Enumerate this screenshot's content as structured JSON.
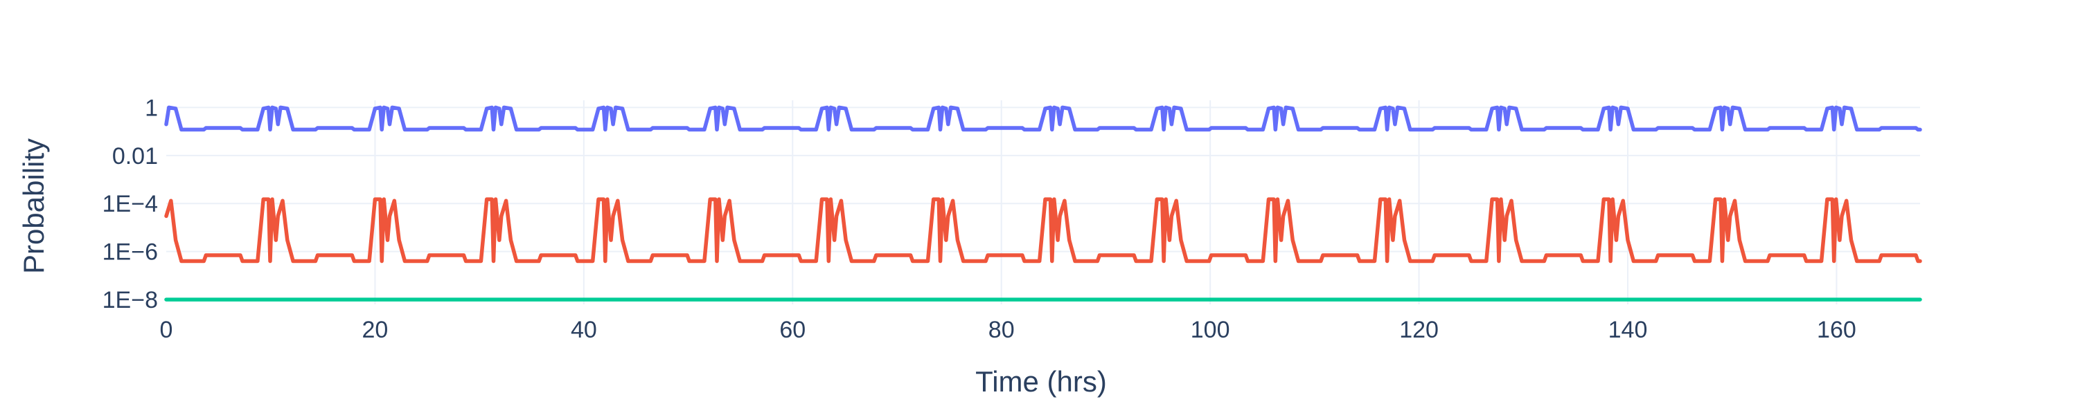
{
  "chart_data": {
    "type": "line",
    "xlabel": "Time (hrs)",
    "ylabel": "Probability",
    "xlim": [
      0,
      168
    ],
    "ylim_log10": [
      -8.2,
      0.3
    ],
    "y_scale": "log",
    "x_ticks": [
      0,
      20,
      40,
      60,
      80,
      100,
      120,
      140,
      160
    ],
    "x_tick_labels": [
      "0",
      "20",
      "40",
      "60",
      "80",
      "100",
      "120",
      "140",
      "160"
    ],
    "y_ticks": [
      1,
      0.01,
      0.0001,
      1e-06,
      1e-08
    ],
    "y_tick_labels": [
      "1",
      "0.01",
      "1E−4",
      "1E−6",
      "1E−8"
    ],
    "grid": true,
    "legend": "none",
    "series": [
      {
        "color": "#636efa",
        "period_hrs": 10.7,
        "cycle_x": [
          0,
          0.25,
          0.9,
          1.45,
          1.9,
          3.6,
          3.8,
          7.1,
          7.3,
          8.75,
          9.3,
          9.8,
          9.95,
          10.15,
          10.5,
          10.7
        ],
        "cycle_y": [
          0.2,
          1.0,
          0.9,
          0.12,
          0.12,
          0.12,
          0.14,
          0.14,
          0.12,
          0.12,
          0.9,
          1.0,
          0.12,
          1.0,
          0.9,
          0.2
        ]
      },
      {
        "color": "#ef553b",
        "period_hrs": 10.7,
        "cycle_x": [
          0,
          0.45,
          0.9,
          1.45,
          1.9,
          3.6,
          3.8,
          7.1,
          7.3,
          8.75,
          9.3,
          9.8,
          9.95,
          10.15,
          10.5,
          10.7
        ],
        "cycle_y": [
          3e-05,
          0.00013,
          3e-06,
          4e-07,
          4e-07,
          4e-07,
          7e-07,
          7e-07,
          4e-07,
          4e-07,
          0.00015,
          0.00015,
          4e-07,
          0.00015,
          3e-06,
          3e-05
        ]
      },
      {
        "color": "#00cc96",
        "constant_y": 1e-08
      }
    ]
  }
}
